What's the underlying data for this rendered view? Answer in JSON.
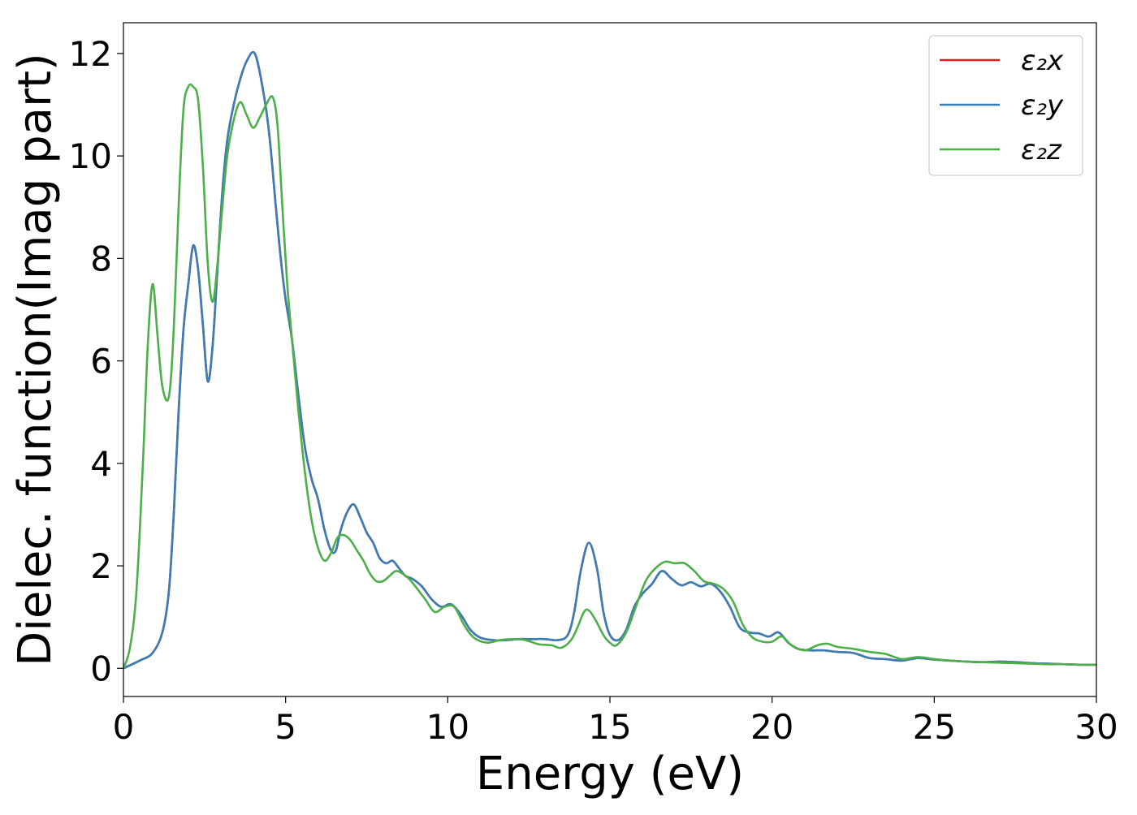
{
  "chart_data": {
    "type": "line",
    "title": "",
    "xlabel": "Energy (eV)",
    "ylabel": "Dielec. function(Imag part)",
    "xlim": [
      0,
      30
    ],
    "ylim": [
      -0.55,
      12.6
    ],
    "xticks": [
      0,
      5,
      10,
      15,
      20,
      25,
      30
    ],
    "yticks": [
      0,
      2,
      4,
      6,
      8,
      10,
      12
    ],
    "legend_position": "top-right",
    "series": [
      {
        "name": "ε₂x",
        "color": "#e41a1c",
        "x": [
          0,
          0.5,
          0.9,
          1.2,
          1.4,
          1.55,
          1.7,
          1.85,
          2.0,
          2.15,
          2.3,
          2.45,
          2.6,
          2.75,
          2.9,
          3.05,
          3.2,
          3.4,
          3.6,
          3.8,
          4.05,
          4.3,
          4.5,
          4.7,
          4.85,
          5.0,
          5.2,
          5.4,
          5.6,
          5.8,
          6.0,
          6.2,
          6.4,
          6.55,
          6.7,
          6.9,
          7.1,
          7.3,
          7.5,
          7.7,
          7.9,
          8.1,
          8.3,
          8.5,
          8.7,
          8.9,
          9.2,
          9.5,
          9.8,
          10.1,
          10.4,
          10.7,
          11.0,
          11.4,
          11.8,
          12.2,
          12.6,
          13.0,
          13.4,
          13.7,
          13.9,
          14.1,
          14.35,
          14.6,
          14.8,
          15.0,
          15.25,
          15.5,
          15.75,
          16.0,
          16.3,
          16.6,
          16.9,
          17.2,
          17.5,
          17.8,
          18.1,
          18.4,
          18.7,
          19.0,
          19.3,
          19.6,
          19.9,
          20.2,
          20.5,
          20.8,
          21.2,
          21.6,
          22.0,
          22.5,
          23.0,
          23.5,
          24.0,
          24.5,
          25.0,
          25.5,
          26.0,
          26.5,
          27.0,
          27.5,
          28.0,
          28.5,
          29.0,
          29.5,
          30.0
        ],
        "y": [
          0.0,
          0.15,
          0.3,
          0.7,
          1.5,
          3.0,
          5.0,
          6.6,
          7.5,
          8.25,
          7.8,
          6.7,
          5.6,
          6.3,
          7.8,
          9.3,
          10.3,
          11.0,
          11.5,
          11.85,
          12.0,
          11.3,
          10.4,
          9.0,
          8.0,
          7.2,
          6.4,
          5.3,
          4.3,
          3.7,
          3.3,
          2.7,
          2.3,
          2.3,
          2.7,
          3.05,
          3.2,
          2.95,
          2.65,
          2.45,
          2.15,
          2.05,
          2.1,
          1.95,
          1.8,
          1.75,
          1.6,
          1.35,
          1.2,
          1.25,
          1.05,
          0.75,
          0.6,
          0.55,
          0.55,
          0.57,
          0.57,
          0.57,
          0.55,
          0.65,
          1.1,
          1.9,
          2.45,
          1.95,
          1.1,
          0.65,
          0.55,
          0.75,
          1.2,
          1.45,
          1.65,
          1.9,
          1.75,
          1.62,
          1.68,
          1.6,
          1.65,
          1.5,
          1.2,
          0.8,
          0.7,
          0.68,
          0.62,
          0.7,
          0.5,
          0.38,
          0.35,
          0.35,
          0.32,
          0.3,
          0.2,
          0.18,
          0.15,
          0.2,
          0.17,
          0.15,
          0.13,
          0.12,
          0.13,
          0.12,
          0.1,
          0.09,
          0.08,
          0.07,
          0.07
        ]
      },
      {
        "name": "ε₂y",
        "color": "#377eb8",
        "x": [
          0,
          0.5,
          0.9,
          1.2,
          1.4,
          1.55,
          1.7,
          1.85,
          2.0,
          2.15,
          2.3,
          2.45,
          2.6,
          2.75,
          2.9,
          3.05,
          3.2,
          3.4,
          3.6,
          3.8,
          4.05,
          4.3,
          4.5,
          4.7,
          4.85,
          5.0,
          5.2,
          5.4,
          5.6,
          5.8,
          6.0,
          6.2,
          6.4,
          6.55,
          6.7,
          6.9,
          7.1,
          7.3,
          7.5,
          7.7,
          7.9,
          8.1,
          8.3,
          8.5,
          8.7,
          8.9,
          9.2,
          9.5,
          9.8,
          10.1,
          10.4,
          10.7,
          11.0,
          11.4,
          11.8,
          12.2,
          12.6,
          13.0,
          13.4,
          13.7,
          13.9,
          14.1,
          14.35,
          14.6,
          14.8,
          15.0,
          15.25,
          15.5,
          15.75,
          16.0,
          16.3,
          16.6,
          16.9,
          17.2,
          17.5,
          17.8,
          18.1,
          18.4,
          18.7,
          19.0,
          19.3,
          19.6,
          19.9,
          20.2,
          20.5,
          20.8,
          21.2,
          21.6,
          22.0,
          22.5,
          23.0,
          23.5,
          24.0,
          24.5,
          25.0,
          25.5,
          26.0,
          26.5,
          27.0,
          27.5,
          28.0,
          28.5,
          29.0,
          29.5,
          30.0
        ],
        "y": [
          0.0,
          0.15,
          0.3,
          0.7,
          1.5,
          3.0,
          5.0,
          6.6,
          7.5,
          8.25,
          7.8,
          6.7,
          5.6,
          6.3,
          7.8,
          9.3,
          10.3,
          11.0,
          11.5,
          11.85,
          12.0,
          11.3,
          10.4,
          9.0,
          8.0,
          7.2,
          6.4,
          5.3,
          4.3,
          3.7,
          3.3,
          2.7,
          2.3,
          2.3,
          2.7,
          3.05,
          3.2,
          2.95,
          2.65,
          2.45,
          2.15,
          2.05,
          2.1,
          1.95,
          1.8,
          1.75,
          1.6,
          1.35,
          1.2,
          1.25,
          1.05,
          0.75,
          0.6,
          0.55,
          0.55,
          0.57,
          0.57,
          0.57,
          0.55,
          0.65,
          1.1,
          1.9,
          2.45,
          1.95,
          1.1,
          0.65,
          0.55,
          0.75,
          1.2,
          1.45,
          1.65,
          1.9,
          1.75,
          1.62,
          1.68,
          1.6,
          1.65,
          1.5,
          1.2,
          0.8,
          0.7,
          0.68,
          0.62,
          0.7,
          0.5,
          0.38,
          0.35,
          0.35,
          0.32,
          0.3,
          0.2,
          0.18,
          0.15,
          0.2,
          0.17,
          0.15,
          0.13,
          0.12,
          0.13,
          0.12,
          0.1,
          0.09,
          0.08,
          0.07,
          0.07
        ]
      },
      {
        "name": "ε₂z",
        "color": "#4daf4a",
        "x": [
          0,
          0.2,
          0.4,
          0.6,
          0.75,
          0.9,
          1.05,
          1.2,
          1.4,
          1.55,
          1.7,
          1.85,
          2.0,
          2.15,
          2.3,
          2.45,
          2.6,
          2.75,
          2.9,
          3.05,
          3.2,
          3.4,
          3.6,
          3.8,
          4.0,
          4.2,
          4.4,
          4.6,
          4.75,
          4.9,
          5.05,
          5.2,
          5.4,
          5.6,
          5.8,
          6.0,
          6.2,
          6.4,
          6.6,
          6.8,
          7.0,
          7.2,
          7.4,
          7.6,
          7.8,
          8.0,
          8.2,
          8.4,
          8.6,
          8.8,
          9.0,
          9.3,
          9.6,
          9.9,
          10.2,
          10.5,
          10.8,
          11.2,
          11.6,
          12.0,
          12.4,
          12.8,
          13.2,
          13.5,
          13.8,
          14.0,
          14.2,
          14.35,
          14.55,
          14.8,
          15.0,
          15.2,
          15.5,
          15.8,
          16.1,
          16.4,
          16.7,
          17.0,
          17.3,
          17.6,
          17.9,
          18.2,
          18.5,
          18.8,
          19.1,
          19.4,
          19.7,
          20.0,
          20.3,
          20.6,
          21.0,
          21.4,
          21.7,
          22.0,
          22.5,
          23.0,
          23.5,
          24.0,
          24.5,
          25.0,
          25.5,
          26.0,
          26.5,
          27.0,
          27.5,
          28.0,
          28.5,
          29.0,
          29.5,
          30.0
        ],
        "y": [
          0.0,
          0.4,
          1.5,
          4.0,
          6.3,
          7.5,
          6.5,
          5.5,
          5.3,
          6.6,
          9.0,
          10.9,
          11.35,
          11.35,
          11.1,
          9.8,
          7.9,
          7.15,
          7.9,
          9.0,
          10.0,
          10.7,
          11.05,
          10.8,
          10.55,
          10.75,
          11.0,
          11.15,
          10.6,
          9.0,
          7.5,
          6.4,
          5.0,
          3.8,
          2.9,
          2.35,
          2.1,
          2.25,
          2.55,
          2.6,
          2.5,
          2.3,
          2.1,
          1.85,
          1.7,
          1.7,
          1.8,
          1.9,
          1.85,
          1.75,
          1.6,
          1.35,
          1.1,
          1.2,
          1.2,
          0.85,
          0.6,
          0.5,
          0.55,
          0.57,
          0.55,
          0.47,
          0.45,
          0.4,
          0.55,
          0.8,
          1.1,
          1.13,
          0.95,
          0.65,
          0.5,
          0.45,
          0.7,
          1.2,
          1.7,
          1.95,
          2.08,
          2.05,
          2.05,
          1.9,
          1.7,
          1.65,
          1.55,
          1.3,
          0.85,
          0.6,
          0.52,
          0.52,
          0.62,
          0.45,
          0.35,
          0.45,
          0.48,
          0.42,
          0.38,
          0.32,
          0.28,
          0.18,
          0.22,
          0.18,
          0.15,
          0.13,
          0.12,
          0.11,
          0.1,
          0.09,
          0.08,
          0.08,
          0.07,
          0.07
        ]
      }
    ]
  }
}
